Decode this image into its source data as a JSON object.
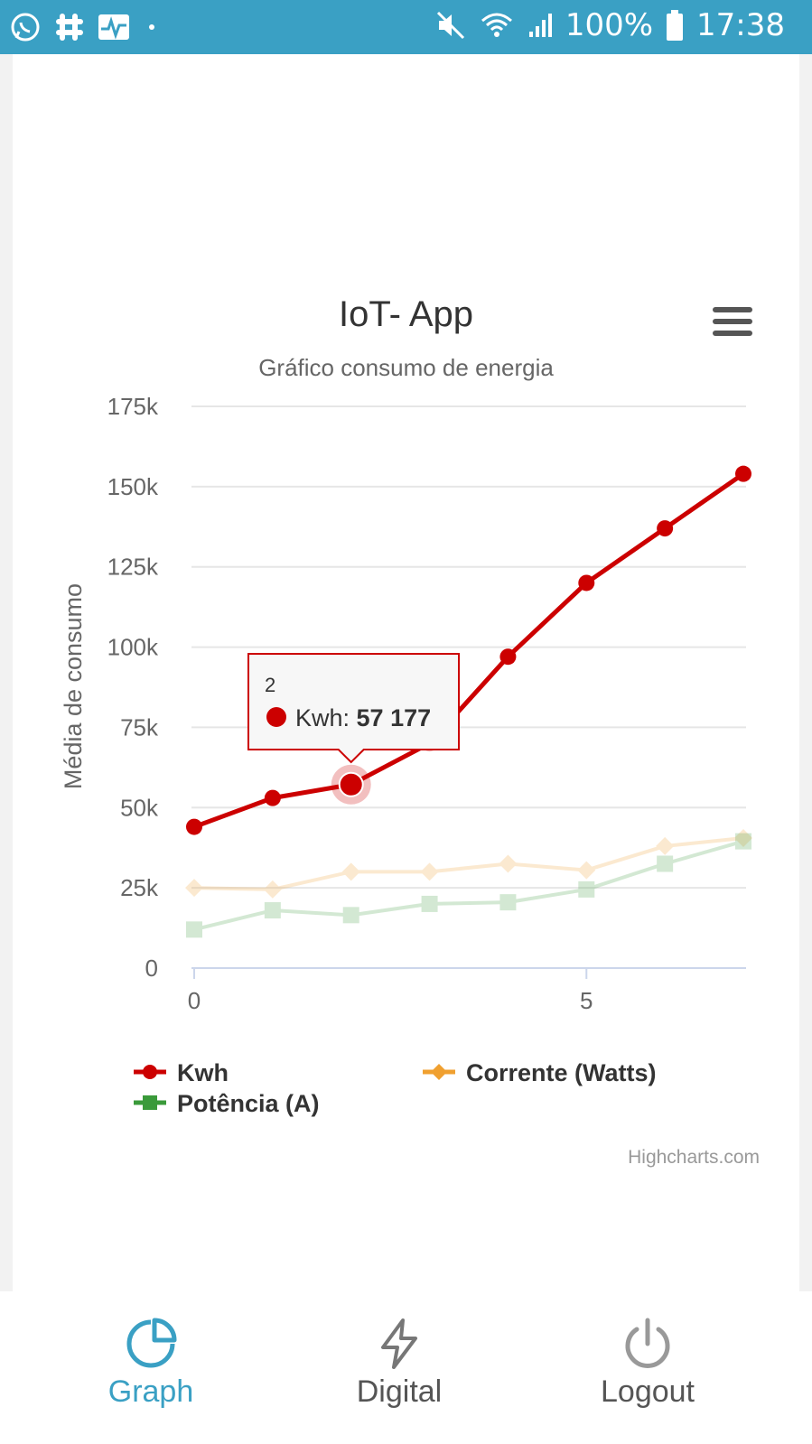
{
  "status_bar": {
    "battery": "100%",
    "time": "17:38"
  },
  "chart_data": {
    "type": "line",
    "title": "IoT- App",
    "subtitle": "Gráfico consumo de energia",
    "ylabel": "Média de consumo",
    "xlabel": "",
    "ylim": [
      0,
      175000
    ],
    "xlim": [
      0,
      7
    ],
    "y_ticks": [
      "0",
      "25k",
      "50k",
      "75k",
      "100k",
      "125k",
      "150k",
      "175k"
    ],
    "x_ticks": [
      "0",
      "5"
    ],
    "grid": true,
    "legend": "bottom",
    "series": [
      {
        "name": "Kwh",
        "color": "#cc0000",
        "marker": "circle",
        "x": [
          0,
          1,
          2,
          3,
          4,
          5,
          6,
          7
        ],
        "values": [
          44000,
          53000,
          57177,
          70000,
          97000,
          120000,
          137000,
          154000
        ]
      },
      {
        "name": "Corrente (Watts)",
        "color": "#f0a030",
        "marker": "diamond",
        "x": [
          0,
          1,
          2,
          3,
          4,
          5,
          6,
          7
        ],
        "values": [
          25000,
          24500,
          30000,
          30000,
          32500,
          30500,
          38000,
          40500
        ]
      },
      {
        "name": "Potência (A)",
        "color": "#3a9a3a",
        "marker": "square",
        "x": [
          0,
          1,
          2,
          3,
          4,
          5,
          6,
          7
        ],
        "values": [
          12000,
          18000,
          16500,
          20000,
          20500,
          24500,
          32500,
          39500
        ]
      }
    ],
    "tooltip": {
      "x": "2",
      "series": "Kwh",
      "label": "Kwh: ",
      "value": "57 177"
    },
    "credits": "Highcharts.com"
  },
  "nav": {
    "items": [
      {
        "label": "Graph",
        "icon": "pie-chart-icon",
        "active": true
      },
      {
        "label": "Digital",
        "icon": "bolt-icon",
        "active": false
      },
      {
        "label": "Logout",
        "icon": "power-icon",
        "active": false
      }
    ],
    "active_color": "#3aa0c4",
    "inactive_color": "#555555"
  }
}
